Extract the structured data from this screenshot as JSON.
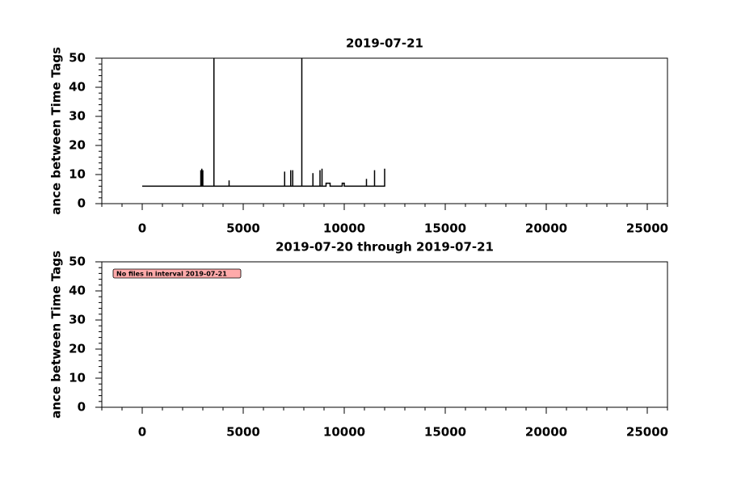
{
  "chart_data": [
    {
      "type": "line",
      "title": "2019-07-21",
      "ylabel": "ance between Time Tags",
      "color": "#000000",
      "x": [
        0,
        2900,
        2900,
        2900,
        2950,
        2950,
        2950,
        3000,
        3000,
        3000,
        3550,
        3550,
        3550,
        4300,
        4300,
        4300,
        7050,
        7050,
        7050,
        7350,
        7350,
        7350,
        7450,
        7450,
        7450,
        7900,
        7900,
        7900,
        8450,
        8450,
        8450,
        8800,
        8800,
        8800,
        8900,
        8900,
        8900,
        9100,
        9100,
        9300,
        9300,
        9900,
        9900,
        10000,
        10000,
        11100,
        11100,
        11100,
        11500,
        11500,
        11500,
        12000,
        12000
      ],
      "values": [
        6,
        6,
        11.5,
        6,
        6,
        12,
        6,
        6,
        11.5,
        6,
        6,
        50,
        6,
        6,
        8,
        6,
        6,
        11,
        6,
        6,
        11.5,
        6,
        6,
        11.5,
        6,
        6,
        50,
        6,
        6,
        10.5,
        6,
        6,
        11.5,
        6,
        6,
        12,
        6,
        6,
        7,
        7,
        6,
        6,
        7,
        7,
        6,
        6,
        8.5,
        6,
        6,
        11.5,
        6,
        6,
        12
      ],
      "xlim": [
        -2000,
        26000
      ],
      "xticks": [
        0,
        5000,
        10000,
        15000,
        20000,
        25000
      ],
      "xminorticks": [
        -2000,
        -1000,
        1000,
        2000,
        3000,
        4000,
        6000,
        7000,
        8000,
        9000,
        11000,
        12000,
        13000,
        14000,
        16000,
        17000,
        18000,
        19000,
        21000,
        22000,
        23000,
        24000,
        26000
      ],
      "ylim": [
        0,
        50
      ],
      "yticks": [
        0,
        10,
        20,
        30,
        40,
        50
      ],
      "yminorticks": [
        2,
        4,
        6,
        8,
        12,
        14,
        16,
        18,
        22,
        24,
        26,
        28,
        32,
        34,
        36,
        38,
        42,
        44,
        46,
        48
      ]
    },
    {
      "type": "empty",
      "title": "2019-07-20 through 2019-07-21",
      "ylabel": "ance between Time Tags",
      "annotation": "No files in interval 2019-07-21",
      "annotation_color": "#ffaaaa",
      "xlim": [
        -2000,
        26000
      ],
      "xticks": [
        0,
        5000,
        10000,
        15000,
        20000,
        25000
      ],
      "xminorticks": [
        -2000,
        -1000,
        1000,
        2000,
        3000,
        4000,
        6000,
        7000,
        8000,
        9000,
        11000,
        12000,
        13000,
        14000,
        16000,
        17000,
        18000,
        19000,
        21000,
        22000,
        23000,
        24000,
        26000
      ],
      "ylim": [
        0,
        50
      ],
      "yticks": [
        0,
        10,
        20,
        30,
        40,
        50
      ],
      "yminorticks": [
        2,
        4,
        6,
        8,
        12,
        14,
        16,
        18,
        22,
        24,
        26,
        28,
        32,
        34,
        36,
        38,
        42,
        44,
        46,
        48
      ]
    }
  ]
}
